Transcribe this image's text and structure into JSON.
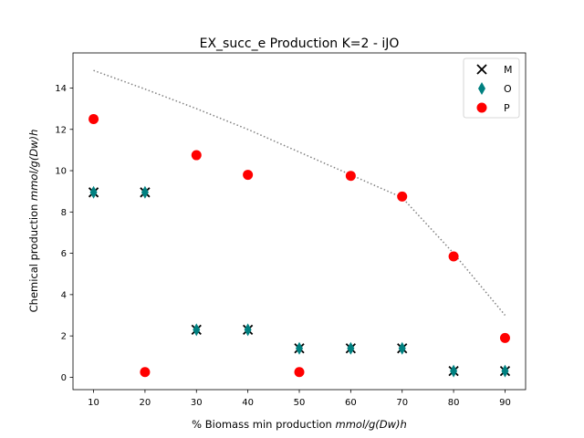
{
  "chart_data": {
    "type": "scatter",
    "title": "EX_succ_e Production K=2 - iJO",
    "xlabel": "% Biomass min production",
    "xlabel_unit": "mmol/g(Dw)h",
    "ylabel": "Chemical production",
    "ylabel_unit": "mmol/g(Dw)h",
    "xlim": [
      6,
      94
    ],
    "ylim": [
      -0.6,
      15.7
    ],
    "xticks": [
      10,
      20,
      30,
      40,
      50,
      60,
      70,
      80,
      90
    ],
    "yticks": [
      0,
      2,
      4,
      6,
      8,
      10,
      12,
      14
    ],
    "grid": false,
    "legend_position": "top-right",
    "envelope": {
      "style": "dotted",
      "color": "#808080",
      "x": [
        10,
        20,
        30,
        40,
        50,
        60,
        70,
        80,
        90
      ],
      "y": [
        14.85,
        13.95,
        13.0,
        12.0,
        10.9,
        9.8,
        8.7,
        6.0,
        3.0
      ]
    },
    "series": [
      {
        "name": "M",
        "marker": "x",
        "color": "#000000",
        "x": [
          10,
          20,
          30,
          40,
          50,
          60,
          70,
          80,
          90
        ],
        "y": [
          8.95,
          8.95,
          2.3,
          2.3,
          1.4,
          1.4,
          1.4,
          0.3,
          0.3
        ]
      },
      {
        "name": "O",
        "marker": "diamond",
        "color": "#008080",
        "x": [
          10,
          20,
          30,
          40,
          50,
          60,
          70,
          80,
          90
        ],
        "y": [
          8.95,
          8.95,
          2.3,
          2.3,
          1.4,
          1.4,
          1.4,
          0.3,
          0.3
        ]
      },
      {
        "name": "P",
        "marker": "circle",
        "color": "#ff0000",
        "x": [
          10,
          20,
          30,
          40,
          50,
          60,
          70,
          80,
          90
        ],
        "y": [
          12.5,
          0.25,
          10.75,
          9.8,
          0.25,
          9.75,
          8.75,
          5.85,
          1.9
        ]
      }
    ]
  }
}
